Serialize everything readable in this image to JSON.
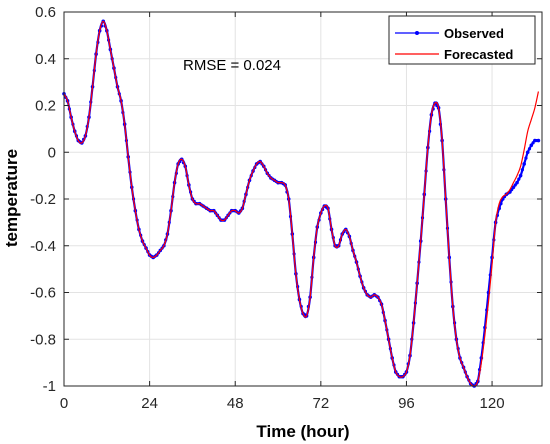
{
  "chart_data": {
    "type": "line",
    "title": "",
    "xlabel": "Time (hour)",
    "ylabel": "temperature",
    "xlim": [
      0,
      134
    ],
    "ylim": [
      -1,
      0.6
    ],
    "xticks": [
      0,
      24,
      48,
      72,
      96,
      120
    ],
    "yticks": [
      -1,
      -0.8,
      -0.6,
      -0.4,
      -0.2,
      0,
      0.2,
      0.4,
      0.6
    ],
    "yticklabels": [
      "-1",
      "-0.8",
      "-0.6",
      "-0.4",
      "-0.2",
      "0",
      "0.2",
      "0.4",
      "0.6"
    ],
    "grid": true,
    "legend_position": "top-right",
    "annotation": "RMSE = 0.024",
    "series": [
      {
        "name": "Observed",
        "color": "#0000ff",
        "marker": "dot",
        "x": [
          0,
          1,
          2,
          3,
          4,
          5,
          6,
          7,
          8,
          9,
          10,
          11,
          12,
          13,
          14,
          15,
          16,
          17,
          18,
          19,
          20,
          21,
          22,
          23,
          24,
          25,
          26,
          27,
          28,
          29,
          30,
          31,
          32,
          33,
          34,
          35,
          36,
          37,
          38,
          39,
          40,
          41,
          42,
          43,
          44,
          45,
          46,
          47,
          48,
          49,
          50,
          51,
          52,
          53,
          54,
          55,
          56,
          57,
          58,
          59,
          60,
          61,
          62,
          63,
          64,
          65,
          66,
          67,
          68,
          69,
          70,
          71,
          72,
          73,
          74,
          75,
          76,
          77,
          78,
          79,
          80,
          81,
          82,
          83,
          84,
          85,
          86,
          87,
          88,
          89,
          90,
          91,
          92,
          93,
          94,
          95,
          96,
          97,
          98,
          99,
          100,
          101,
          102,
          103,
          104,
          105,
          106,
          107,
          108,
          109,
          110,
          111,
          112,
          113,
          114,
          115,
          116,
          117,
          118,
          119,
          120,
          121,
          122,
          123,
          124,
          125,
          126,
          127,
          128,
          129,
          130,
          131,
          132,
          133
        ],
        "y": [
          0.25,
          0.22,
          0.15,
          0.09,
          0.05,
          0.04,
          0.07,
          0.15,
          0.28,
          0.42,
          0.52,
          0.56,
          0.52,
          0.44,
          0.36,
          0.28,
          0.22,
          0.12,
          -0.02,
          -0.15,
          -0.25,
          -0.33,
          -0.38,
          -0.41,
          -0.44,
          -0.45,
          -0.44,
          -0.42,
          -0.4,
          -0.35,
          -0.25,
          -0.13,
          -0.05,
          -0.03,
          -0.06,
          -0.14,
          -0.2,
          -0.22,
          -0.22,
          -0.23,
          -0.24,
          -0.25,
          -0.25,
          -0.27,
          -0.29,
          -0.29,
          -0.27,
          -0.25,
          -0.25,
          -0.26,
          -0.24,
          -0.18,
          -0.12,
          -0.08,
          -0.05,
          -0.04,
          -0.06,
          -0.09,
          -0.11,
          -0.12,
          -0.13,
          -0.13,
          -0.14,
          -0.2,
          -0.35,
          -0.52,
          -0.63,
          -0.69,
          -0.7,
          -0.62,
          -0.45,
          -0.32,
          -0.26,
          -0.23,
          -0.24,
          -0.33,
          -0.4,
          -0.4,
          -0.35,
          -0.33,
          -0.36,
          -0.42,
          -0.47,
          -0.53,
          -0.58,
          -0.61,
          -0.62,
          -0.61,
          -0.62,
          -0.65,
          -0.72,
          -0.8,
          -0.88,
          -0.94,
          -0.96,
          -0.96,
          -0.94,
          -0.87,
          -0.73,
          -0.56,
          -0.38,
          -0.18,
          0.02,
          0.16,
          0.21,
          0.19,
          0.05,
          -0.2,
          -0.45,
          -0.66,
          -0.8,
          -0.88,
          -0.92,
          -0.96,
          -0.99,
          -1.0,
          -0.98,
          -0.88,
          -0.75,
          -0.6,
          -0.45,
          -0.3,
          -0.24,
          -0.2,
          -0.18,
          -0.17,
          -0.15,
          -0.13,
          -0.1,
          -0.05,
          0.0,
          0.03,
          0.05,
          0.05
        ]
      },
      {
        "name": "Forecasted",
        "color": "#ff0000",
        "marker": "none",
        "x": [
          0,
          1,
          2,
          3,
          4,
          5,
          6,
          7,
          8,
          9,
          10,
          11,
          12,
          13,
          14,
          15,
          16,
          17,
          18,
          19,
          20,
          21,
          22,
          23,
          24,
          25,
          26,
          27,
          28,
          29,
          30,
          31,
          32,
          33,
          34,
          35,
          36,
          37,
          38,
          39,
          40,
          41,
          42,
          43,
          44,
          45,
          46,
          47,
          48,
          49,
          50,
          51,
          52,
          53,
          54,
          55,
          56,
          57,
          58,
          59,
          60,
          61,
          62,
          63,
          64,
          65,
          66,
          67,
          68,
          69,
          70,
          71,
          72,
          73,
          74,
          75,
          76,
          77,
          78,
          79,
          80,
          81,
          82,
          83,
          84,
          85,
          86,
          87,
          88,
          89,
          90,
          91,
          92,
          93,
          94,
          95,
          96,
          97,
          98,
          99,
          100,
          101,
          102,
          103,
          104,
          105,
          106,
          107,
          108,
          109,
          110,
          111,
          112,
          113,
          114,
          115,
          116,
          117,
          118,
          119,
          120,
          121,
          122,
          123,
          124,
          125,
          126,
          127,
          128,
          129,
          130,
          131,
          132,
          133
        ],
        "y": [
          0.25,
          0.22,
          0.15,
          0.09,
          0.05,
          0.04,
          0.07,
          0.15,
          0.28,
          0.42,
          0.52,
          0.56,
          0.52,
          0.44,
          0.36,
          0.28,
          0.22,
          0.12,
          -0.02,
          -0.15,
          -0.25,
          -0.33,
          -0.38,
          -0.41,
          -0.44,
          -0.45,
          -0.44,
          -0.42,
          -0.4,
          -0.35,
          -0.25,
          -0.13,
          -0.05,
          -0.03,
          -0.06,
          -0.14,
          -0.2,
          -0.22,
          -0.22,
          -0.23,
          -0.24,
          -0.25,
          -0.25,
          -0.27,
          -0.29,
          -0.29,
          -0.27,
          -0.25,
          -0.25,
          -0.26,
          -0.24,
          -0.18,
          -0.12,
          -0.08,
          -0.05,
          -0.04,
          -0.06,
          -0.09,
          -0.11,
          -0.12,
          -0.13,
          -0.13,
          -0.14,
          -0.2,
          -0.35,
          -0.52,
          -0.63,
          -0.69,
          -0.7,
          -0.62,
          -0.45,
          -0.32,
          -0.26,
          -0.23,
          -0.24,
          -0.33,
          -0.4,
          -0.4,
          -0.35,
          -0.33,
          -0.36,
          -0.42,
          -0.47,
          -0.53,
          -0.58,
          -0.61,
          -0.62,
          -0.61,
          -0.62,
          -0.65,
          -0.72,
          -0.8,
          -0.88,
          -0.94,
          -0.96,
          -0.96,
          -0.94,
          -0.87,
          -0.73,
          -0.56,
          -0.38,
          -0.18,
          0.02,
          0.16,
          0.21,
          0.19,
          0.05,
          -0.2,
          -0.45,
          -0.66,
          -0.8,
          -0.88,
          -0.92,
          -0.96,
          -0.99,
          -1.0,
          -0.98,
          -0.9,
          -0.78,
          -0.64,
          -0.48,
          -0.3,
          -0.22,
          -0.19,
          -0.18,
          -0.16,
          -0.13,
          -0.1,
          -0.06,
          0.01,
          0.09,
          0.14,
          0.19,
          0.26
        ]
      }
    ]
  }
}
